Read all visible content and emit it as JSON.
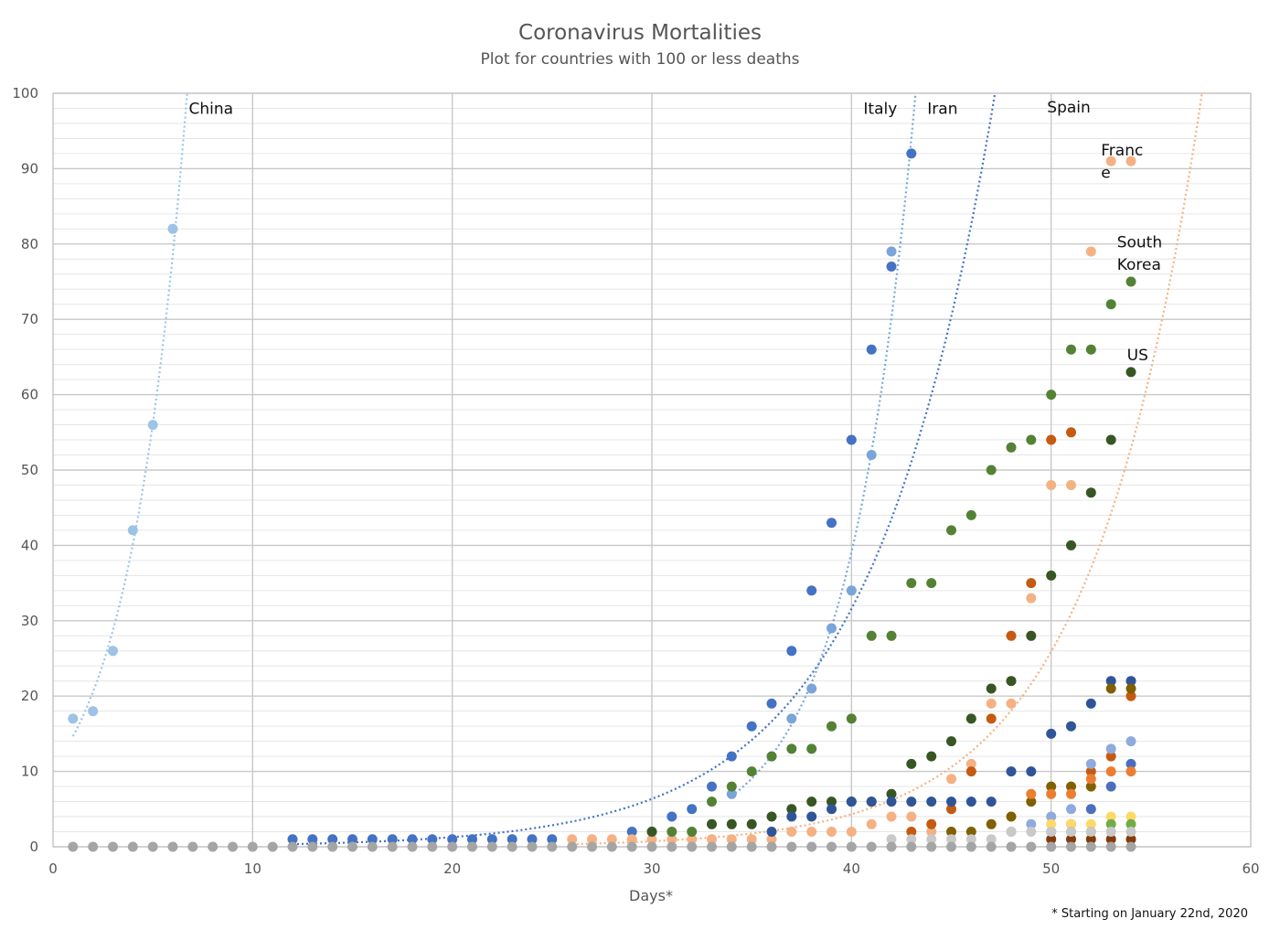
{
  "chart_data": {
    "type": "scatter",
    "title": "Coronavirus Mortalities",
    "subtitle": "Plot for countries with 100 or less deaths",
    "xlabel": "Days*",
    "ylabel": "",
    "xlim": [
      0,
      60
    ],
    "ylim": [
      0,
      100
    ],
    "xticks": [
      "0",
      "10",
      "20",
      "30",
      "40",
      "50",
      "60"
    ],
    "yticks": [
      "0",
      "10",
      "20",
      "30",
      "40",
      "50",
      "60",
      "70",
      "80",
      "90",
      "100"
    ],
    "grid": true,
    "footnote": "* Starting on January 22nd, 2020",
    "trendline_style": "dotted",
    "annotations": [
      {
        "text": "China",
        "x": 6.8,
        "y": 98
      },
      {
        "text": "Italy",
        "x": 40.6,
        "y": 98
      },
      {
        "text": "Iran",
        "x": 43.8,
        "y": 98
      },
      {
        "text": "Spain",
        "x": 49.8,
        "y": 98.2
      },
      {
        "text": "Franc",
        "x": 52.5,
        "y": 92.5
      },
      {
        "text": "e",
        "x": 52.5,
        "y": 89.5
      },
      {
        "text": "South",
        "x": 53.3,
        "y": 80.3
      },
      {
        "text": "Korea",
        "x": 53.3,
        "y": 77.3
      },
      {
        "text": "US",
        "x": 53.8,
        "y": 65.3
      }
    ],
    "series": [
      {
        "color": "#9dc3e6",
        "trend": true,
        "x": [
          1,
          2,
          3,
          4,
          5,
          6
        ],
        "y": [
          17,
          18,
          26,
          42,
          56,
          82
        ]
      },
      {
        "color": "#4472c4",
        "trend": true,
        "x": [
          12,
          13,
          14,
          15,
          16,
          17,
          18,
          19,
          20,
          21,
          22,
          23,
          24,
          25,
          29,
          30,
          31,
          32,
          33,
          34,
          35,
          36,
          37,
          38,
          39,
          40,
          41,
          42,
          43
        ],
        "y": [
          1,
          1,
          1,
          1,
          1,
          1,
          1,
          1,
          1,
          1,
          1,
          1,
          1,
          1,
          2,
          2,
          4,
          5,
          8,
          12,
          16,
          19,
          26,
          34,
          43,
          54,
          66,
          77,
          92
        ]
      },
      {
        "color": "#7aa5d9",
        "trend": true,
        "x": [
          34,
          36,
          37,
          38,
          39,
          40,
          41,
          42
        ],
        "y": [
          7,
          12,
          17,
          21,
          29,
          34,
          52,
          79
        ]
      },
      {
        "color": "#f4b183",
        "trend": true,
        "x": [
          26,
          27,
          28,
          29,
          30,
          31,
          32,
          33,
          34,
          35,
          36,
          37,
          38,
          39,
          40,
          41,
          42,
          43,
          44,
          45,
          46,
          47,
          48,
          49,
          50,
          51,
          52,
          53,
          54
        ],
        "y": [
          1,
          1,
          1,
          1,
          1,
          1,
          1,
          1,
          1,
          1,
          1,
          2,
          2,
          2,
          2,
          3,
          4,
          4,
          2,
          9,
          11,
          19,
          19,
          33,
          48,
          48,
          79,
          91,
          91
        ]
      },
      {
        "color": "#548235",
        "trend": false,
        "x": [
          31,
          32,
          33,
          34,
          35,
          36,
          37,
          38,
          39,
          40,
          41,
          42,
          43,
          44,
          45,
          46,
          47,
          48,
          49,
          50,
          51,
          52,
          53,
          54
        ],
        "y": [
          2,
          2,
          6,
          8,
          10,
          12,
          13,
          13,
          16,
          17,
          28,
          28,
          35,
          35,
          42,
          44,
          50,
          53,
          54,
          60,
          66,
          66,
          72,
          75
        ]
      },
      {
        "color": "#c55a11",
        "trend": false,
        "x": [
          43,
          44,
          45,
          46,
          47,
          48,
          49,
          50,
          51,
          52,
          53,
          54
        ],
        "y": [
          2,
          3,
          5,
          10,
          17,
          28,
          35,
          54,
          55,
          10,
          12,
          20
        ]
      },
      {
        "color": "#375623",
        "trend": false,
        "x": [
          30,
          33,
          34,
          35,
          36,
          37,
          38,
          39,
          40,
          41,
          42,
          43,
          44,
          45,
          46,
          47,
          48,
          49,
          50,
          51,
          52,
          53,
          54
        ],
        "y": [
          2,
          3,
          3,
          3,
          4,
          5,
          6,
          6,
          6,
          6,
          7,
          11,
          12,
          14,
          17,
          21,
          22,
          28,
          36,
          40,
          47,
          54,
          63
        ]
      },
      {
        "color": "#2f5597",
        "trend": false,
        "x": [
          36,
          37,
          38,
          39,
          40,
          41,
          42,
          43,
          44,
          45,
          46,
          47,
          48,
          49,
          50,
          51,
          52,
          53,
          54
        ],
        "y": [
          2,
          4,
          4,
          5,
          6,
          6,
          6,
          6,
          6,
          6,
          6,
          6,
          10,
          10,
          15,
          16,
          19,
          22,
          22
        ]
      },
      {
        "color": "#806000",
        "trend": false,
        "x": [
          45,
          46,
          47,
          48,
          49,
          50,
          51,
          52,
          53,
          54
        ],
        "y": [
          2,
          2,
          3,
          4,
          6,
          8,
          8,
          8,
          21,
          21
        ]
      },
      {
        "color": "#8faadc",
        "trend": false,
        "x": [
          48,
          49,
          50,
          51,
          52,
          53,
          54
        ],
        "y": [
          2,
          3,
          4,
          5,
          11,
          13,
          14
        ]
      },
      {
        "color": "#4a6fbf",
        "trend": false,
        "x": [
          50,
          51,
          52,
          53,
          54
        ],
        "y": [
          2,
          3,
          5,
          8,
          11
        ]
      },
      {
        "color": "#ed7d31",
        "trend": false,
        "x": [
          49,
          50,
          51,
          52,
          53,
          54
        ],
        "y": [
          7,
          7,
          7,
          9,
          10,
          10
        ]
      },
      {
        "color": "#ffd966",
        "trend": false,
        "x": [
          50,
          51,
          52,
          53,
          54
        ],
        "y": [
          3,
          3,
          3,
          4,
          4
        ]
      },
      {
        "color": "#70ad47",
        "trend": false,
        "x": [
          51,
          52,
          53,
          54
        ],
        "y": [
          2,
          2,
          3,
          3
        ]
      },
      {
        "color": "#843c0c",
        "trend": false,
        "x": [
          50,
          51,
          52,
          53,
          54
        ],
        "y": [
          1,
          1,
          1,
          1,
          1
        ]
      },
      {
        "color": "#c9c9c9",
        "trend": false,
        "x": [
          42,
          43,
          44,
          45,
          46,
          47,
          48,
          49,
          50,
          51,
          52,
          53,
          54
        ],
        "y": [
          1,
          1,
          1,
          1,
          1,
          1,
          2,
          2,
          2,
          2,
          2,
          2,
          2
        ]
      },
      {
        "color": "#a5a5a5",
        "trend": false,
        "x": [
          1,
          2,
          3,
          4,
          5,
          6,
          7,
          8,
          9,
          10,
          11,
          12,
          13,
          14,
          15,
          16,
          17,
          18,
          19,
          20,
          21,
          22,
          23,
          24,
          25,
          26,
          27,
          28,
          29,
          30,
          31,
          32,
          33,
          34,
          35,
          36,
          37,
          38,
          39,
          40,
          41,
          42,
          43,
          44,
          45,
          46,
          47,
          48,
          49,
          50,
          51,
          52,
          53,
          54
        ],
        "y": [
          0,
          0,
          0,
          0,
          0,
          0,
          0,
          0,
          0,
          0,
          0,
          0,
          0,
          0,
          0,
          0,
          0,
          0,
          0,
          0,
          0,
          0,
          0,
          0,
          0,
          0,
          0,
          0,
          0,
          0,
          0,
          0,
          0,
          0,
          0,
          0,
          0,
          0,
          0,
          0,
          0,
          0,
          0,
          0,
          0,
          0,
          0,
          0,
          0,
          0,
          0,
          0,
          0,
          0
        ]
      }
    ]
  }
}
